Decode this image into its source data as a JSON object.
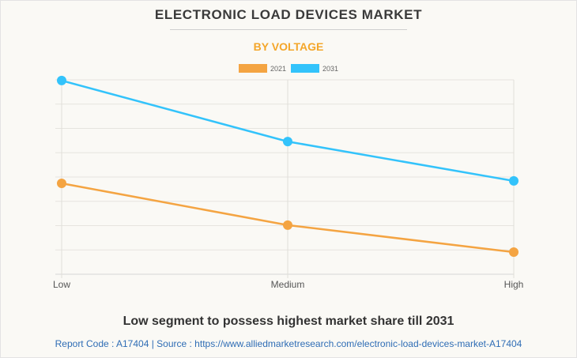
{
  "title": "ELECTRONIC LOAD DEVICES MARKET",
  "subtitle": "BY VOLTAGE",
  "footer_note": "Low segment to possess highest market share till 2031",
  "source_line": "Report Code : A17404  |  Source : https://www.alliedmarketresearch.com/electronic-load-devices-market-A17404",
  "chart_data": {
    "type": "line",
    "title": "ELECTRONIC LOAD DEVICES MARKET",
    "subtitle": "BY VOLTAGE",
    "xlabel": "",
    "ylabel": "",
    "categories": [
      "Low",
      "Medium",
      "High"
    ],
    "series": [
      {
        "name": "2021",
        "color": "#f4a442",
        "values": [
          3.74,
          2.02,
          0.91
        ]
      },
      {
        "name": "2031",
        "color": "#33c3fb",
        "values": [
          7.97,
          5.46,
          3.84
        ]
      }
    ],
    "ylim": [
      0,
      8
    ],
    "y_gridlines": 8,
    "y_tick_labels_shown": false,
    "grid": true,
    "legend_position": "top-center"
  }
}
